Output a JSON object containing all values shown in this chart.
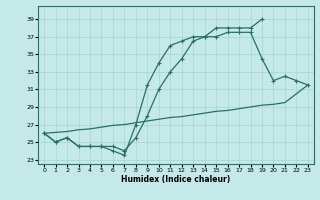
{
  "xlabel": "Humidex (Indice chaleur)",
  "xlim": [
    -0.5,
    23.5
  ],
  "ylim": [
    22.5,
    40.5
  ],
  "yticks": [
    23,
    25,
    27,
    29,
    31,
    33,
    35,
    37,
    39
  ],
  "xticks": [
    0,
    1,
    2,
    3,
    4,
    5,
    6,
    7,
    8,
    9,
    10,
    11,
    12,
    13,
    14,
    15,
    16,
    17,
    18,
    19,
    20,
    21,
    22,
    23
  ],
  "bg_color": "#c5e8e8",
  "grid_color": "#a8d4d4",
  "line_color": "#2a7060",
  "line1_x": [
    0,
    1,
    2,
    3,
    4,
    5,
    6,
    7,
    8,
    9,
    10,
    11,
    12,
    13,
    14,
    15,
    16,
    17,
    18,
    19
  ],
  "line1_y": [
    26,
    25,
    25.5,
    24.5,
    24.5,
    24.5,
    24,
    23.5,
    27,
    31.5,
    34,
    36,
    36.5,
    37,
    37,
    38,
    38,
    38,
    38,
    39
  ],
  "line2_x": [
    0,
    1,
    2,
    3,
    4,
    5,
    6,
    7,
    8,
    9,
    10,
    11,
    12,
    13,
    14,
    15,
    16,
    17,
    18,
    19,
    20,
    21,
    22,
    23
  ],
  "line2_y": [
    26,
    25,
    25.5,
    24.5,
    24.5,
    24.5,
    24.5,
    24,
    25.5,
    28,
    31,
    33,
    34.5,
    36.5,
    37,
    37,
    37.5,
    37.5,
    37.5,
    34.5,
    32,
    32.5,
    32,
    31.5
  ],
  "line3_x": [
    0,
    1,
    2,
    3,
    4,
    5,
    6,
    7,
    8,
    9,
    10,
    11,
    12,
    13,
    14,
    15,
    16,
    17,
    18,
    19,
    20,
    21,
    22,
    23
  ],
  "line3_y": [
    26,
    26.1,
    26.2,
    26.4,
    26.5,
    26.7,
    26.9,
    27.0,
    27.2,
    27.4,
    27.6,
    27.8,
    27.9,
    28.1,
    28.3,
    28.5,
    28.6,
    28.8,
    29.0,
    29.2,
    29.3,
    29.5,
    30.5,
    31.5
  ],
  "figsize": [
    3.2,
    2.0
  ],
  "dpi": 100
}
